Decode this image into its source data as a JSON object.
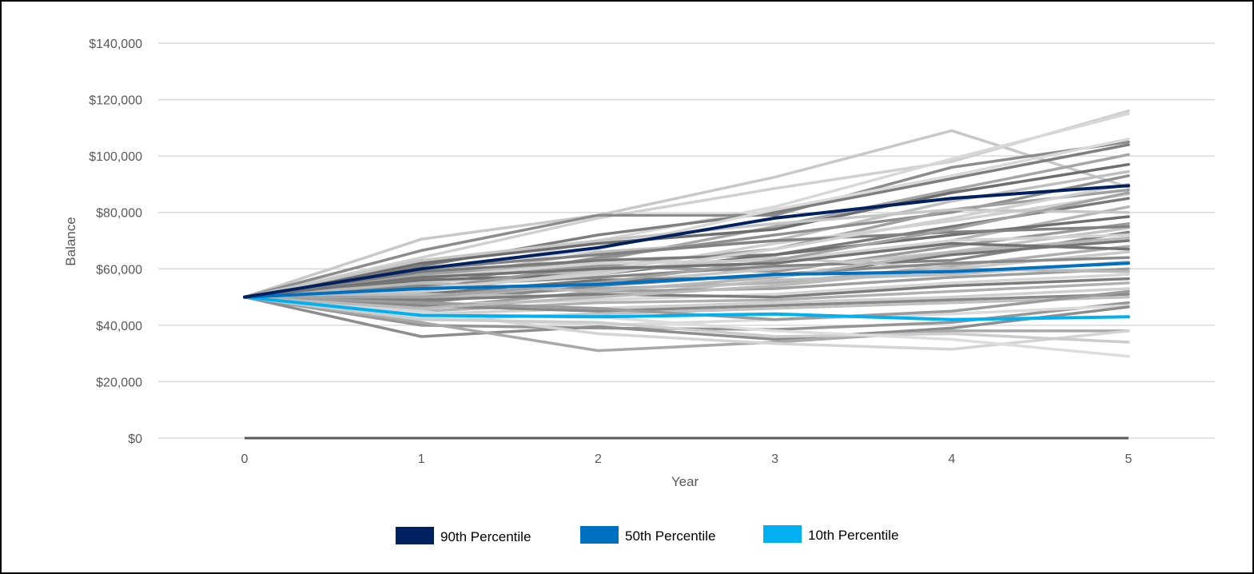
{
  "chart_data": {
    "type": "line",
    "title": "",
    "xlabel": "Year",
    "ylabel": "Balance",
    "x": [
      0,
      1,
      2,
      3,
      4,
      5
    ],
    "x_tick_labels": [
      "0",
      "1",
      "2",
      "3",
      "4",
      "5"
    ],
    "ylim": [
      0,
      140000
    ],
    "y_ticks": [
      0,
      20000,
      40000,
      60000,
      80000,
      100000,
      120000,
      140000
    ],
    "y_tick_labels": [
      "$0",
      "$20,000",
      "$40,000",
      "$60,000",
      "$80,000",
      "$100,000",
      "$120,000",
      "$140,000"
    ],
    "grid": true,
    "legend_position": "bottom",
    "highlight_series": [
      {
        "name": "90th Percentile",
        "color": "#002060",
        "values": [
          50000,
          60000,
          67500,
          78000,
          85000,
          89500
        ]
      },
      {
        "name": "50th Percentile",
        "color": "#0070C0",
        "values": [
          50000,
          53000,
          54500,
          58000,
          59000,
          62000
        ]
      },
      {
        "name": "10th Percentile",
        "color": "#00B0F0",
        "values": [
          50000,
          43500,
          43000,
          44000,
          42000,
          43000
        ]
      }
    ],
    "simulation_series": [
      {
        "color": "#C8C8C8",
        "values": [
          50000,
          70500,
          79000,
          92500,
          109000,
          89000
        ]
      },
      {
        "color": "#D0D0D0",
        "values": [
          50000,
          64000,
          78000,
          88500,
          98000,
          116000
        ]
      },
      {
        "color": "#D8D8D8",
        "values": [
          50000,
          57000,
          70000,
          82000,
          99000,
          115000
        ]
      },
      {
        "color": "#8C8C8C",
        "values": [
          50000,
          66500,
          79000,
          79000,
          96000,
          105000
        ]
      },
      {
        "color": "#7E7E7E",
        "values": [
          50000,
          61000,
          72000,
          80000,
          92000,
          104000
        ]
      },
      {
        "color": "#D9D9D9",
        "values": [
          50000,
          59000,
          67000,
          81000,
          93000,
          106000
        ]
      },
      {
        "color": "#A6A6A6",
        "values": [
          50000,
          58000,
          63000,
          75000,
          88000,
          100500
        ]
      },
      {
        "color": "#6E6E6E",
        "values": [
          50000,
          62000,
          69000,
          74000,
          87000,
          97000
        ]
      },
      {
        "color": "#BFBFBF",
        "values": [
          50000,
          56000,
          66000,
          70000,
          84000,
          94500
        ]
      },
      {
        "color": "#8F8F8F",
        "values": [
          50000,
          54000,
          64000,
          72000,
          80000,
          93000
        ]
      },
      {
        "color": "#A0A0A0",
        "values": [
          50000,
          58000,
          61000,
          67000,
          81000,
          88000
        ]
      },
      {
        "color": "#D0D0D0",
        "values": [
          50000,
          55000,
          59000,
          69000,
          77000,
          86500
        ]
      },
      {
        "color": "#7A7A7A",
        "values": [
          50000,
          59000,
          63000,
          65000,
          75000,
          85000
        ]
      },
      {
        "color": "#B5B5B5",
        "values": [
          50000,
          52000,
          60000,
          62000,
          70000,
          82000
        ]
      },
      {
        "color": "#6F6F6F",
        "values": [
          50000,
          56000,
          58000,
          65000,
          72000,
          78500
        ]
      },
      {
        "color": "#9A9A9A",
        "values": [
          50000,
          53000,
          61000,
          59000,
          68000,
          76000
        ]
      },
      {
        "color": "#C4C4C4",
        "values": [
          50000,
          49000,
          55000,
          60000,
          66000,
          74500
        ]
      },
      {
        "color": "#858585",
        "values": [
          50000,
          54000,
          57000,
          61000,
          63000,
          73000
        ]
      },
      {
        "color": "#D3D3D3",
        "values": [
          50000,
          57000,
          62000,
          63000,
          70000,
          72000
        ]
      },
      {
        "color": "#767676",
        "values": [
          50000,
          51000,
          56000,
          57000,
          65000,
          70000
        ]
      },
      {
        "color": "#AEAEAE",
        "values": [
          50000,
          50000,
          53000,
          55000,
          61000,
          68000
        ]
      },
      {
        "color": "#C9C9C9",
        "values": [
          50000,
          52000,
          59000,
          64000,
          60000,
          66000
        ]
      },
      {
        "color": "#8A8A8A",
        "values": [
          50000,
          48000,
          54000,
          58000,
          62000,
          64000
        ]
      },
      {
        "color": "#BDBDBD",
        "values": [
          50000,
          51000,
          50000,
          56000,
          58000,
          62500
        ]
      },
      {
        "color": "#9E9E9E",
        "values": [
          50000,
          46000,
          52000,
          53000,
          57000,
          60000
        ]
      },
      {
        "color": "#D6D6D6",
        "values": [
          50000,
          47000,
          49000,
          51000,
          55000,
          58000
        ]
      },
      {
        "color": "#7D7D7D",
        "values": [
          50000,
          49000,
          51000,
          50000,
          54000,
          56500
        ]
      },
      {
        "color": "#B0B0B0",
        "values": [
          50000,
          45000,
          48000,
          49000,
          52000,
          55000
        ]
      },
      {
        "color": "#CFCFCF",
        "values": [
          50000,
          44000,
          46000,
          48000,
          50000,
          53000
        ]
      },
      {
        "color": "#888888",
        "values": [
          50000,
          47000,
          45000,
          47000,
          49000,
          51000
        ]
      },
      {
        "color": "#C0C0C0",
        "values": [
          50000,
          42000,
          44000,
          46000,
          48000,
          50000
        ]
      },
      {
        "color": "#969696",
        "values": [
          50000,
          40000,
          39000,
          38500,
          41000,
          48000
        ]
      },
      {
        "color": "#DADADA",
        "values": [
          50000,
          43000,
          40000,
          42000,
          44000,
          47000
        ]
      },
      {
        "color": "#8D8D8D",
        "values": [
          50000,
          36000,
          39500,
          35000,
          39000,
          46500
        ]
      },
      {
        "color": "#A9A9A9",
        "values": [
          50000,
          41000,
          31000,
          34000,
          38000,
          38000
        ]
      },
      {
        "color": "#D4D4D4",
        "values": [
          50000,
          45000,
          37000,
          33500,
          31500,
          38000
        ]
      },
      {
        "color": "#CCCCCC",
        "values": [
          50000,
          42000,
          41000,
          36000,
          37000,
          34000
        ]
      },
      {
        "color": "#DDDDDD",
        "values": [
          50000,
          44000,
          43000,
          38000,
          35000,
          29000
        ]
      },
      {
        "color": "#9B9B9B",
        "values": [
          50000,
          48000,
          46000,
          42000,
          45000,
          52000
        ]
      },
      {
        "color": "#B8B8B8",
        "values": [
          50000,
          55000,
          52000,
          57000,
          66000,
          71000
        ]
      },
      {
        "color": "#828282",
        "values": [
          50000,
          60000,
          65000,
          70000,
          73000,
          75000
        ]
      },
      {
        "color": "#C6C6C6",
        "values": [
          50000,
          63000,
          70000,
          76000,
          81000,
          80000
        ]
      },
      {
        "color": "#A3A3A3",
        "values": [
          50000,
          50000,
          55000,
          63000,
          74000,
          87000
        ]
      },
      {
        "color": "#D1D1D1",
        "values": [
          50000,
          53000,
          58000,
          67000,
          78000,
          90000
        ]
      },
      {
        "color": "#737373",
        "values": [
          50000,
          57000,
          60000,
          62000,
          69000,
          67000
        ]
      },
      {
        "color": "#BABABA",
        "values": [
          50000,
          46000,
          50000,
          54000,
          60000,
          59000
        ]
      }
    ],
    "baseline_series": {
      "color": "#595959",
      "values": [
        0,
        0,
        0,
        0,
        0,
        0
      ]
    }
  }
}
